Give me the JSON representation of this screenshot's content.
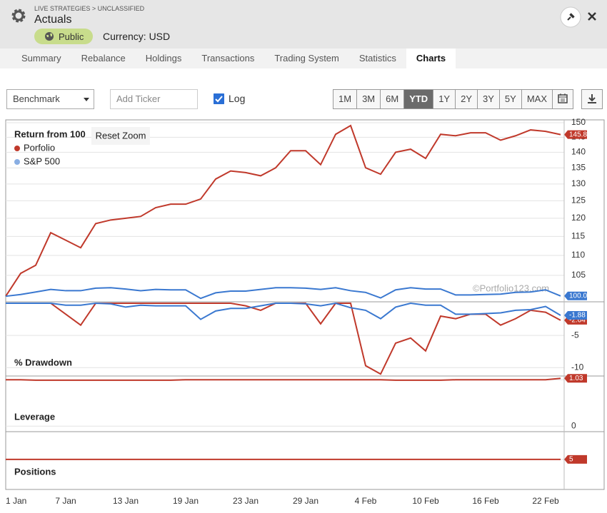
{
  "header": {
    "breadcrumb": "LIVE STRATEGIES > UNCLASSIFIED",
    "title": "Actuals",
    "visibility": "Public",
    "currency": "Currency: USD"
  },
  "tabs": [
    "Summary",
    "Rebalance",
    "Holdings",
    "Transactions",
    "Trading System",
    "Statistics",
    "Charts"
  ],
  "active_tab": 6,
  "toolbar": {
    "benchmark": "Benchmark",
    "ticker_placeholder": "Add Ticker",
    "log_label": "Log",
    "periods": [
      "1M",
      "3M",
      "6M",
      "YTD",
      "1Y",
      "2Y",
      "3Y",
      "5Y",
      "MAX"
    ],
    "active_period": 3,
    "reset_zoom": "Reset Zoom"
  },
  "watermark": "©Portfolio123.com",
  "chart_data": [
    {
      "type": "line",
      "title": "Return from 100",
      "log_scale": true,
      "ylim": [
        99.2,
        150.5
      ],
      "yticks": [
        105,
        110,
        115,
        120,
        125,
        130,
        135,
        140,
        145,
        150
      ],
      "grid": true,
      "series": [
        {
          "name": "Porfolio",
          "color": "#c0392b",
          "values": [
            100,
            105.5,
            107.5,
            116,
            114,
            112,
            118.5,
            119.5,
            120,
            120.5,
            123,
            124,
            124,
            125.5,
            131.5,
            134,
            133.5,
            132.5,
            135,
            140.5,
            140.5,
            136,
            146,
            149,
            135,
            133,
            140,
            141,
            138,
            146,
            145.5,
            146.5,
            146.5,
            144,
            145.5,
            147.5,
            147,
            145.89
          ]
        },
        {
          "name": "S&P 500",
          "color": "#3a78d0",
          "values": [
            100,
            100.4,
            101,
            101.6,
            101.3,
            101.3,
            101.9,
            102,
            101.7,
            101.3,
            101.6,
            101.5,
            101.5,
            99.5,
            100.8,
            101.2,
            101.2,
            101.6,
            102,
            102,
            101.9,
            101.6,
            102,
            101.3,
            100.9,
            99.6,
            101.5,
            102,
            101.7,
            101.7,
            100.3,
            100.3,
            100.4,
            100.5,
            100.9,
            101,
            101.5,
            100.07
          ]
        }
      ]
    },
    {
      "type": "line",
      "title": "% Drawdown",
      "ylim": [
        -11.3,
        0
      ],
      "yticks": [
        -10,
        -5
      ],
      "grid": true,
      "series": [
        {
          "color": "#c0392b",
          "values": [
            0,
            0,
            0,
            0,
            -1.7,
            -3.4,
            0,
            0,
            0,
            0,
            0,
            0,
            0,
            0,
            0,
            0,
            -0.4,
            -1.1,
            0,
            0,
            0,
            -3.2,
            0,
            0,
            -9.7,
            -11,
            -6.2,
            -5.4,
            -7.4,
            -2,
            -2.4,
            -1.7,
            -1.7,
            -3.4,
            -2.4,
            -1.1,
            -1.4,
            -2.64
          ]
        },
        {
          "color": "#3a78d0",
          "values": [
            0,
            0,
            0,
            0,
            -0.3,
            -0.3,
            0,
            -0.1,
            -0.6,
            -0.3,
            -0.4,
            -0.4,
            -0.4,
            -2.5,
            -1.2,
            -0.8,
            -0.8,
            -0.4,
            0,
            0,
            -0.1,
            -0.4,
            0,
            -0.7,
            -1.1,
            -2.4,
            -0.6,
            0,
            -0.3,
            -0.3,
            -1.7,
            -1.7,
            -1.6,
            -1.5,
            -1.1,
            -1,
            -0.5,
            -1.88
          ]
        }
      ]
    },
    {
      "type": "line",
      "title": "Leverage",
      "ylim": [
        -0.12,
        1.05
      ],
      "yticks": [
        0,
        1
      ],
      "grid": true,
      "series": [
        {
          "color": "#c0392b",
          "values": [
            1,
            1,
            0.99,
            0.99,
            0.99,
            0.99,
            0.99,
            0.99,
            0.99,
            0.99,
            0.99,
            0.99,
            1,
            1,
            1,
            1,
            1,
            1,
            1,
            1,
            1,
            1,
            1,
            1,
            1,
            1,
            0.99,
            0.99,
            0.99,
            0.99,
            1,
            1,
            1,
            1,
            1,
            1,
            1,
            1.03
          ]
        }
      ]
    },
    {
      "type": "line",
      "title": "Positions",
      "ylim": [
        0,
        9.7
      ],
      "yticks": [
        5
      ],
      "grid": true,
      "categories": [
        "1 Jan",
        null,
        null,
        null,
        "7 Jan",
        null,
        null,
        null,
        "13 Jan",
        null,
        null,
        null,
        "19 Jan",
        null,
        null,
        null,
        "23 Jan",
        null,
        null,
        null,
        "29 Jan",
        null,
        null,
        null,
        "4 Feb",
        null,
        null,
        null,
        "10 Feb",
        null,
        null,
        null,
        "16 Feb",
        null,
        null,
        null,
        "22 Feb",
        null
      ],
      "series": [
        {
          "color": "#c0392b",
          "values": [
            5,
            5,
            5,
            5,
            5,
            5,
            5,
            5,
            5,
            5,
            5,
            5,
            5,
            5,
            5,
            5,
            5,
            5,
            5,
            5,
            5,
            5,
            5,
            5,
            5,
            5,
            5,
            5,
            5,
            5,
            5,
            5,
            5,
            5,
            5,
            5,
            5,
            5
          ]
        }
      ]
    }
  ]
}
